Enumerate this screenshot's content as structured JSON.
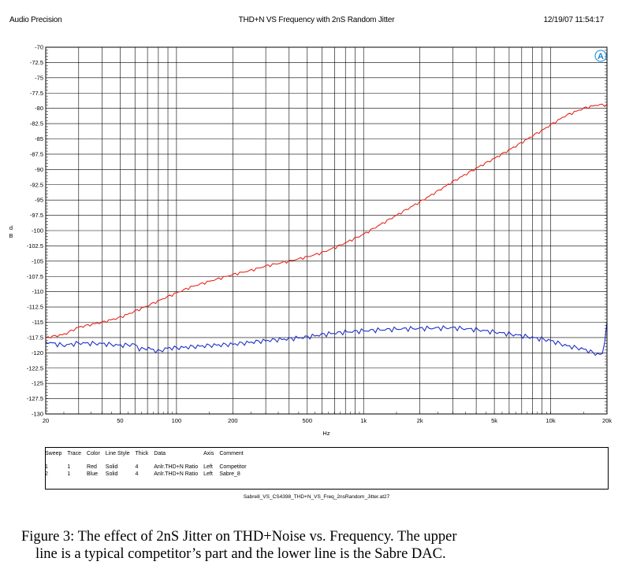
{
  "header": {
    "left": "Audio Precision",
    "center": "THD+N VS Frequency with 2nS Random Jitter",
    "right": "12/19/07 11:54:17"
  },
  "chart_data": {
    "type": "line",
    "title": "THD+N VS Frequency with 2nS Random Jitter",
    "xlabel": "Hz",
    "ylabel": "d B",
    "xscale": "log",
    "xlim": [
      20,
      20000
    ],
    "ylim": [
      -130,
      -70
    ],
    "y_ticks": [
      "-70",
      "-72.5",
      "-75",
      "-77.5",
      "-80",
      "-82.5",
      "-85",
      "-87.5",
      "-90",
      "-92.5",
      "-95",
      "-97.5",
      "-100",
      "-102.5",
      "-105",
      "-107.5",
      "-110",
      "-112.5",
      "-115",
      "-117.5",
      "-120",
      "-122.5",
      "-125",
      "-127.5",
      "-130"
    ],
    "x_ticks": [
      {
        "v": 20,
        "label": "20"
      },
      {
        "v": 50,
        "label": "50"
      },
      {
        "v": 100,
        "label": "100"
      },
      {
        "v": 200,
        "label": "200"
      },
      {
        "v": 500,
        "label": "500"
      },
      {
        "v": 1000,
        "label": "1k"
      },
      {
        "v": 2000,
        "label": "2k"
      },
      {
        "v": 5000,
        "label": "5k"
      },
      {
        "v": 10000,
        "label": "10k"
      },
      {
        "v": 20000,
        "label": "20k"
      }
    ],
    "grid": true,
    "series": [
      {
        "name": "Competitor",
        "color": "#e8281e",
        "x": [
          20,
          25,
          30,
          40,
          50,
          60,
          70,
          80,
          90,
          100,
          120,
          150,
          200,
          250,
          300,
          400,
          500,
          600,
          700,
          800,
          1000,
          1200,
          1500,
          2000,
          2500,
          3000,
          4000,
          5000,
          6000,
          7000,
          8000,
          9000,
          10000,
          12000,
          15000,
          18000,
          20000
        ],
        "y": [
          -117.5,
          -117,
          -115.8,
          -115,
          -114.2,
          -113.2,
          -112.3,
          -111.5,
          -110.8,
          -110.2,
          -109.2,
          -108.3,
          -107.2,
          -106.5,
          -105.8,
          -105,
          -104.3,
          -103.6,
          -102.8,
          -102,
          -100.6,
          -99.2,
          -97.5,
          -95.3,
          -93.5,
          -92,
          -89.8,
          -88.2,
          -86.8,
          -85.6,
          -84.5,
          -83.6,
          -82.7,
          -81.2,
          -80,
          -79.4,
          -79.5
        ]
      },
      {
        "name": "Sabre_8",
        "color": "#2030c8",
        "x": [
          20,
          25,
          30,
          40,
          50,
          60,
          64,
          70,
          80,
          90,
          100,
          150,
          200,
          300,
          400,
          500,
          600,
          800,
          1000,
          1500,
          2000,
          3000,
          4000,
          5000,
          7000,
          10000,
          12000,
          15000,
          18000,
          19000,
          20000
        ],
        "y": [
          -118.2,
          -118.8,
          -118.4,
          -118.5,
          -118.8,
          -118.6,
          -119.5,
          -119.2,
          -119.8,
          -119.2,
          -119.2,
          -118.8,
          -118.6,
          -118,
          -117.7,
          -117.4,
          -117,
          -116.6,
          -116.4,
          -116.1,
          -116,
          -115.9,
          -116.2,
          -116.6,
          -117.2,
          -118,
          -118.8,
          -119.4,
          -120.3,
          -120.2,
          -115.2
        ]
      }
    ]
  },
  "legend": {
    "headers": [
      "Sweep",
      "Trace",
      "Color",
      "Line Style",
      "Thick",
      "Data",
      "Axis",
      "Comment"
    ],
    "rows": [
      [
        "1",
        "1",
        "Red",
        "Solid",
        "4",
        "Anlr.THD+N Ratio",
        "Left",
        "Competitor"
      ],
      [
        "2",
        "1",
        "Blue",
        "Solid",
        "4",
        "Anlr.THD+N Ratio",
        "Left",
        "Sabre_8"
      ]
    ]
  },
  "filename": "Sabre8_VS_CS4398_THD+N_VS_Freq_2nsRandom_Jitter.at27",
  "caption": {
    "line1": "Figure 3: The effect of 2nS Jitter on THD+Noise vs. Frequency. The upper",
    "line2": "line is a typical competitor’s part and the lower line is the Sabre DAC."
  }
}
